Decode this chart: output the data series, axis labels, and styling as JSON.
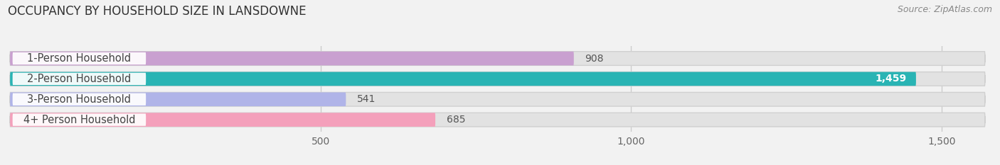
{
  "title": "OCCUPANCY BY HOUSEHOLD SIZE IN LANSDOWNE",
  "source": "Source: ZipAtlas.com",
  "categories": [
    "1-Person Household",
    "2-Person Household",
    "3-Person Household",
    "4+ Person Household"
  ],
  "values": [
    908,
    1459,
    541,
    685
  ],
  "bar_colors": [
    "#c9a0d0",
    "#29b4b4",
    "#b0b4e8",
    "#f4a0bb"
  ],
  "xlim": [
    0,
    1570
  ],
  "xticks": [
    500,
    1000,
    1500
  ],
  "background_color": "#f2f2f2",
  "bar_bg_color": "#e2e2e2",
  "bar_outline_color": "#d0d0d0",
  "title_fontsize": 12,
  "label_fontsize": 10.5,
  "value_fontsize": 10,
  "source_fontsize": 9
}
